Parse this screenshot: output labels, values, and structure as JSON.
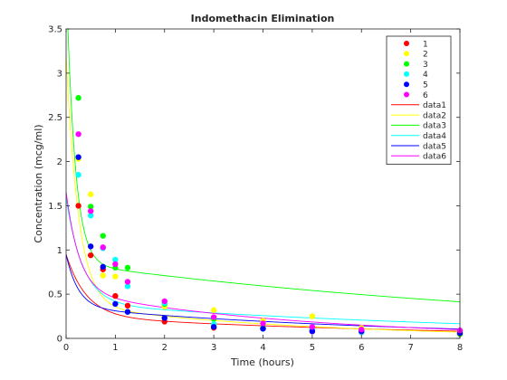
{
  "chart_data": {
    "type": "scatter",
    "title": "Indomethacin Elimination",
    "xlabel": "Time (hours)",
    "ylabel": "Concentration (mcg/ml)",
    "xlim": [
      0,
      8
    ],
    "ylim": [
      0,
      3.5
    ],
    "xticks": [
      0,
      1,
      2,
      3,
      4,
      5,
      6,
      7,
      8
    ],
    "yticks": [
      0,
      0.5,
      1,
      1.5,
      2,
      2.5,
      3,
      3.5
    ],
    "grid": false,
    "legend_position": "top-right",
    "x": [
      0.25,
      0.5,
      0.75,
      1,
      1.25,
      2,
      3,
      4,
      5,
      6,
      8
    ],
    "series": [
      {
        "name": "1",
        "color": "#ff0000",
        "values": [
          1.5,
          0.94,
          0.78,
          0.48,
          0.37,
          0.19,
          0.12,
          0.11,
          0.08,
          0.07,
          0.05
        ]
      },
      {
        "name": "2",
        "color": "#ffff00",
        "values": [
          2.03,
          1.63,
          0.71,
          0.7,
          0.64,
          0.36,
          0.32,
          0.2,
          0.25,
          0.12,
          0.08
        ]
      },
      {
        "name": "3",
        "color": "#00ff00",
        "values": [
          2.72,
          1.49,
          1.16,
          0.8,
          0.8,
          0.39,
          0.22,
          0.12,
          0.11,
          0.08,
          0.05
        ]
      },
      {
        "name": "4",
        "color": "#00ffff",
        "values": [
          1.85,
          1.39,
          1.02,
          0.89,
          0.59,
          0.4,
          0.16,
          0.11,
          0.1,
          0.07,
          0.07
        ]
      },
      {
        "name": "5",
        "color": "#0000ff",
        "values": [
          2.05,
          1.04,
          0.81,
          0.39,
          0.3,
          0.23,
          0.13,
          0.11,
          0.08,
          0.08,
          0.06
        ]
      },
      {
        "name": "6",
        "color": "#ff00ff",
        "values": [
          2.31,
          1.44,
          1.03,
          0.84,
          0.64,
          0.42,
          0.24,
          0.17,
          0.13,
          0.1,
          0.09
        ]
      }
    ],
    "fits": [
      {
        "name": "data1",
        "color": "#ff0000",
        "model": [
          [
            0.7,
            2.44
          ],
          [
            0.25,
            0.14
          ]
        ]
      },
      {
        "name": "data2",
        "color": "#ffff00",
        "model": [
          [
            2.83,
            4.0
          ],
          [
            0.38,
            0.21
          ]
        ]
      },
      {
        "name": "data3",
        "color": "#00ff00",
        "model": [
          [
            3.29,
            5.75
          ],
          [
            0.85,
            0.09
          ]
        ]
      },
      {
        "name": "data4",
        "color": "#00ffff",
        "model": [
          [
            1.19,
            2.97
          ],
          [
            0.4,
            0.11
          ]
        ]
      },
      {
        "name": "data5",
        "color": "#0000ff",
        "model": [
          [
            0.6,
            4.05
          ],
          [
            0.35,
            0.15
          ]
        ]
      },
      {
        "name": "data6",
        "color": "#ff00ff",
        "model": [
          [
            1.13,
            3.7
          ],
          [
            0.53,
            0.21
          ]
        ]
      }
    ]
  }
}
